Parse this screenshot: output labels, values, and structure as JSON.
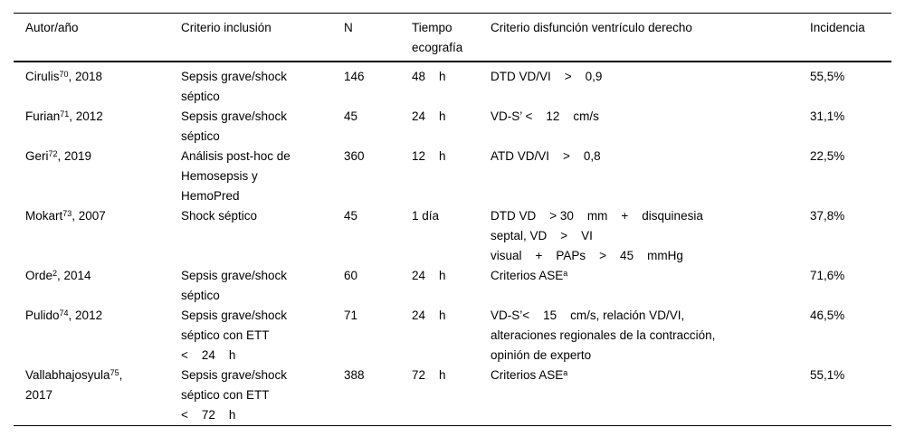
{
  "table": {
    "headers": [
      {
        "lines": [
          "Autor/año"
        ]
      },
      {
        "lines": [
          "Criterio inclusión"
        ]
      },
      {
        "lines": [
          "N"
        ]
      },
      {
        "lines": [
          "Tiempo",
          "ecografía"
        ]
      },
      {
        "lines": [
          "Criterio disfunción ventrículo derecho"
        ]
      },
      {
        "lines": [
          "Incidencia"
        ]
      }
    ],
    "rows": [
      {
        "author": {
          "pre": "Cirulis",
          "sup": "70",
          "post": ", 2018",
          "line2": ""
        },
        "inclusion": {
          "lines": [
            "Sepsis grave/shock",
            "séptico"
          ]
        },
        "n": "146",
        "time": "48    h",
        "criteria": {
          "lines": [
            "DTD VD/VI    >    0,9"
          ],
          "sup": ""
        },
        "incidence": "55,5%"
      },
      {
        "author": {
          "pre": "Furian",
          "sup": "71",
          "post": ", 2012",
          "line2": ""
        },
        "inclusion": {
          "lines": [
            "Sepsis grave/shock",
            "séptico"
          ]
        },
        "n": "45",
        "time": "24    h",
        "criteria": {
          "lines": [
            "VD-S’ <    12    cm/s"
          ],
          "sup": ""
        },
        "incidence": "31,1%"
      },
      {
        "author": {
          "pre": "Geri",
          "sup": "72",
          "post": ", 2019",
          "line2": ""
        },
        "inclusion": {
          "lines": [
            "Análisis post-hoc de",
            "Hemosepsis y",
            "HemoPred"
          ]
        },
        "n": "360",
        "time": "12    h",
        "criteria": {
          "lines": [
            "ATD VD/VI    >    0,8"
          ],
          "sup": ""
        },
        "incidence": "22,5%"
      },
      {
        "author": {
          "pre": "Mokart",
          "sup": "73",
          "post": ", 2007",
          "line2": ""
        },
        "inclusion": {
          "lines": [
            "Shock séptico"
          ]
        },
        "n": "45",
        "time": "1 día",
        "criteria": {
          "lines": [
            "DTD VD    > 30    mm    +    disquinesia",
            "septal, VD    >    VI",
            "visual    +    PAPs    >    45    mmHg"
          ],
          "sup": ""
        },
        "incidence": "37,8%"
      },
      {
        "author": {
          "pre": "Orde",
          "sup": "2",
          "post": ", 2014",
          "line2": ""
        },
        "inclusion": {
          "lines": [
            "Sepsis grave/shock",
            "séptico"
          ]
        },
        "n": "60",
        "time": "24    h",
        "criteria": {
          "lines": [
            "Criterios ASE"
          ],
          "sup": "a"
        },
        "incidence": "71,6%"
      },
      {
        "author": {
          "pre": "Pulido",
          "sup": "74",
          "post": ", 2012",
          "line2": ""
        },
        "inclusion": {
          "lines": [
            "Sepsis grave/shock",
            "séptico con ETT",
            "<    24    h"
          ]
        },
        "n": "71",
        "time": "24    h",
        "criteria": {
          "lines": [
            "VD-S’<    15    cm/s, relación VD/VI,",
            "alteraciones regionales de la contracción,",
            "opinión de experto"
          ],
          "sup": ""
        },
        "incidence": "46,5%"
      },
      {
        "author": {
          "pre": "Vallabhajosyula",
          "sup": "75",
          "post": ",",
          "line2": "2017"
        },
        "inclusion": {
          "lines": [
            "Sepsis grave/shock",
            "séptico con ETT",
            "<    72    h"
          ]
        },
        "n": "388",
        "time": "72    h",
        "criteria": {
          "lines": [
            "Criterios ASE"
          ],
          "sup": "a"
        },
        "incidence": "55,1%"
      }
    ]
  }
}
